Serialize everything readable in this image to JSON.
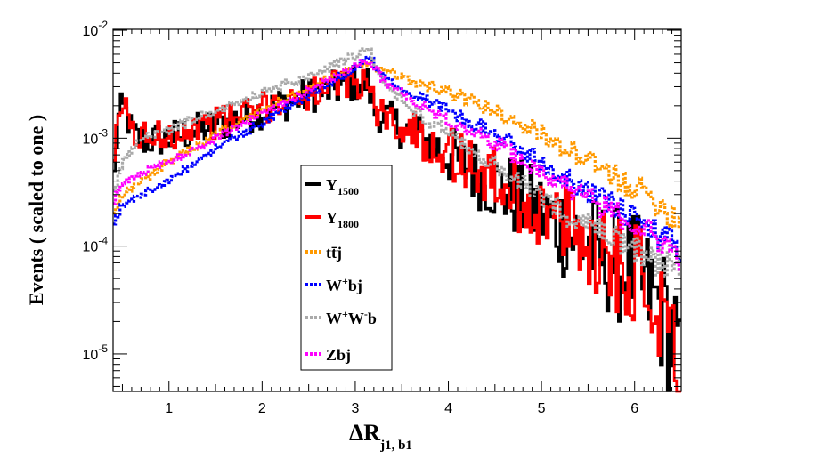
{
  "chart_data": {
    "type": "line",
    "style": "histogram",
    "xlabel": "ΔR",
    "xlabel_subscript": "j1, b1",
    "ylabel": "Events  ( scaled to one )",
    "xlim": [
      0.4,
      6.5
    ],
    "ylim": [
      4.5e-06,
      0.0102
    ],
    "yscale": "log",
    "grid": false,
    "x_ticks": [
      1,
      2,
      3,
      4,
      5,
      6
    ],
    "x_tick_labels": [
      "1",
      "2",
      "3",
      "4",
      "5",
      "6"
    ],
    "y_ticks": [
      1e-05,
      0.0001,
      0.001,
      0.01
    ],
    "y_tick_labels": [
      {
        "base": "10",
        "exp": "-5"
      },
      {
        "base": "10",
        "exp": "-4"
      },
      {
        "base": "10",
        "exp": "-3"
      },
      {
        "base": "10",
        "exp": "-2"
      }
    ],
    "legend_position": "center",
    "series": [
      {
        "name": "Y_1500",
        "label": "Y",
        "sub": "1500",
        "sup": "",
        "color": "#000000",
        "dash": "solid",
        "noise": 0.17,
        "points": [
          [
            0.4,
            0.0003
          ],
          [
            0.45,
            0.0014
          ],
          [
            0.5,
            0.0019
          ],
          [
            0.55,
            0.0016
          ],
          [
            0.6,
            0.0011
          ],
          [
            0.7,
            0.00095
          ],
          [
            1.0,
            0.001
          ],
          [
            1.5,
            0.0013
          ],
          [
            2.0,
            0.0018
          ],
          [
            2.5,
            0.0025
          ],
          [
            3.0,
            0.0032
          ],
          [
            3.14,
            0.0033
          ],
          [
            3.2,
            0.0018
          ],
          [
            3.5,
            0.00125
          ],
          [
            4.0,
            0.0007
          ],
          [
            4.5,
            0.00037
          ],
          [
            5.0,
            0.0002
          ],
          [
            5.5,
            0.0001
          ],
          [
            6.0,
            5.5e-05
          ],
          [
            6.3,
            2.5e-05
          ],
          [
            6.45,
            1.2e-05
          ],
          [
            6.5,
            4e-06
          ]
        ]
      },
      {
        "name": "Y_1800",
        "label": "Y",
        "sub": "1800",
        "sup": "",
        "color": "#ff0000",
        "dash": "solid",
        "noise": 0.15,
        "points": [
          [
            0.4,
            0.0003
          ],
          [
            0.45,
            0.0016
          ],
          [
            0.5,
            0.0021
          ],
          [
            0.55,
            0.0017
          ],
          [
            0.6,
            0.0012
          ],
          [
            0.7,
            0.001
          ],
          [
            1.0,
            0.0011
          ],
          [
            1.5,
            0.0014
          ],
          [
            2.0,
            0.0019
          ],
          [
            2.5,
            0.0026
          ],
          [
            3.0,
            0.0033
          ],
          [
            3.14,
            0.0034
          ],
          [
            3.2,
            0.0019
          ],
          [
            3.5,
            0.0013
          ],
          [
            4.0,
            0.00075
          ],
          [
            4.5,
            0.0004
          ],
          [
            5.0,
            0.00021
          ],
          [
            5.5,
            0.00011
          ],
          [
            6.0,
            6e-05
          ],
          [
            6.3,
            3e-05
          ],
          [
            6.45,
            1.5e-05
          ],
          [
            6.5,
            1e-05
          ]
        ]
      },
      {
        "name": "ttbar_j",
        "label": "tt̄j",
        "sub": "",
        "sup": "",
        "color": "#ff9900",
        "dash": "3,2",
        "noise": 0.035,
        "points": [
          [
            0.4,
            0.0002
          ],
          [
            0.5,
            0.0003
          ],
          [
            0.7,
            0.0004
          ],
          [
            1.0,
            0.0006
          ],
          [
            1.5,
            0.0011
          ],
          [
            2.0,
            0.0018
          ],
          [
            2.5,
            0.003
          ],
          [
            3.0,
            0.0045
          ],
          [
            3.14,
            0.005
          ],
          [
            3.3,
            0.0042
          ],
          [
            3.5,
            0.0037
          ],
          [
            4.0,
            0.0027
          ],
          [
            4.5,
            0.0018
          ],
          [
            5.0,
            0.0011
          ],
          [
            5.5,
            0.0006
          ],
          [
            6.0,
            0.00035
          ],
          [
            6.3,
            0.00024
          ],
          [
            6.5,
            0.00016
          ]
        ]
      },
      {
        "name": "W+bj",
        "label": "W",
        "sub": "",
        "sup": "+",
        "suffix": "bj",
        "color": "#0000ff",
        "dash": "3,2",
        "noise": 0.035,
        "points": [
          [
            0.4,
            0.00015
          ],
          [
            0.5,
            0.00024
          ],
          [
            0.7,
            0.0003
          ],
          [
            1.0,
            0.0004
          ],
          [
            1.5,
            0.0008
          ],
          [
            2.0,
            0.0014
          ],
          [
            2.5,
            0.0025
          ],
          [
            3.0,
            0.0045
          ],
          [
            3.14,
            0.0058
          ],
          [
            3.3,
            0.0038
          ],
          [
            3.5,
            0.003
          ],
          [
            4.0,
            0.0018
          ],
          [
            4.5,
            0.0011
          ],
          [
            5.0,
            0.0006
          ],
          [
            5.5,
            0.00033
          ],
          [
            6.0,
            0.00018
          ],
          [
            6.3,
            0.00012
          ],
          [
            6.5,
            9e-05
          ]
        ]
      },
      {
        "name": "W+W-b",
        "label": "W",
        "sub": "",
        "sup": "+",
        "suffix": "W",
        "suffix_sup": "-",
        "suffix2": "b",
        "color": "#aaaaaa",
        "dash": "3,2",
        "noise": 0.04,
        "points": [
          [
            0.4,
            0.00028
          ],
          [
            0.5,
            0.0006
          ],
          [
            0.7,
            0.001
          ],
          [
            1.0,
            0.0012
          ],
          [
            1.5,
            0.0018
          ],
          [
            2.0,
            0.0026
          ],
          [
            2.5,
            0.0038
          ],
          [
            3.0,
            0.0058
          ],
          [
            3.14,
            0.0068
          ],
          [
            3.3,
            0.0034
          ],
          [
            3.5,
            0.0022
          ],
          [
            4.0,
            0.0011
          ],
          [
            4.5,
            0.00055
          ],
          [
            5.0,
            0.00028
          ],
          [
            5.5,
            0.00015
          ],
          [
            6.0,
            9e-05
          ],
          [
            6.3,
            7e-05
          ],
          [
            6.5,
            6e-05
          ]
        ]
      },
      {
        "name": "Zbj",
        "label": "Zbj",
        "sub": "",
        "sup": "",
        "color": "#ff00ff",
        "dash": "3,2",
        "noise": 0.035,
        "points": [
          [
            0.4,
            0.00025
          ],
          [
            0.5,
            0.00038
          ],
          [
            0.7,
            0.00048
          ],
          [
            1.0,
            0.0006
          ],
          [
            1.5,
            0.001
          ],
          [
            2.0,
            0.0017
          ],
          [
            2.5,
            0.0028
          ],
          [
            3.0,
            0.0046
          ],
          [
            3.14,
            0.0053
          ],
          [
            3.3,
            0.0035
          ],
          [
            3.5,
            0.0026
          ],
          [
            4.0,
            0.0015
          ],
          [
            4.5,
            0.0009
          ],
          [
            5.0,
            0.0005
          ],
          [
            5.5,
            0.00028
          ],
          [
            6.0,
            0.00016
          ],
          [
            6.3,
            0.00011
          ],
          [
            6.5,
            8e-05
          ]
        ]
      }
    ]
  }
}
